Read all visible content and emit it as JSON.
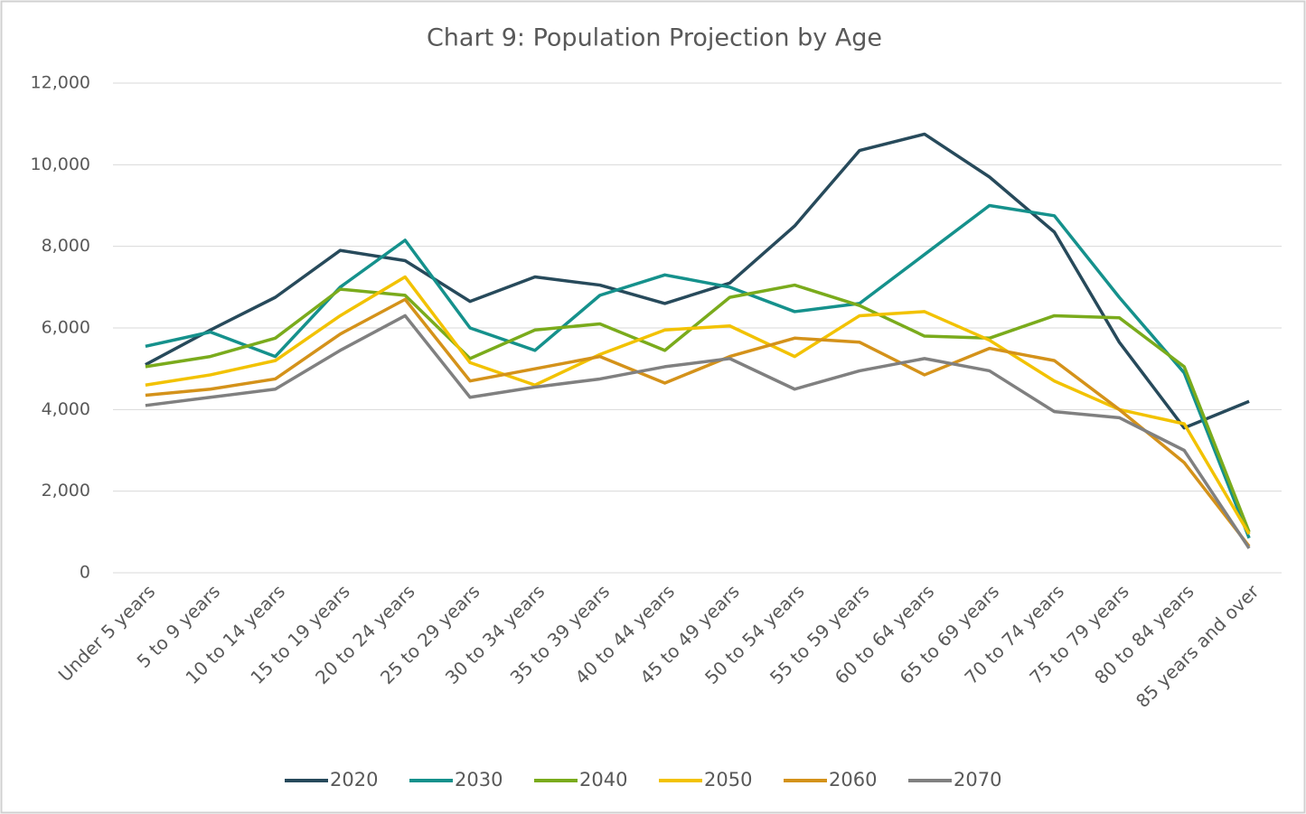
{
  "chart_data": {
    "type": "line",
    "title": "Chart 9: Population Projection by Age",
    "categories": [
      "Under 5 years",
      "5 to 9 years",
      "10 to 14 years",
      "15 to 19 years",
      "20 to 24 years",
      "25 to 29 years",
      "30 to 34 years",
      "35 to 39 years",
      "40 to 44 years",
      "45 to 49 years",
      "50 to 54 years",
      "55 to 59 years",
      "60 to 64 years",
      "65 to 69 years",
      "70 to 74 years",
      "75 to 79 years",
      "80 to 84 years",
      "85 years and over"
    ],
    "series": [
      {
        "name": "2020",
        "color": "#274a5b",
        "values": [
          5100,
          5950,
          6750,
          7900,
          7650,
          6650,
          7250,
          7050,
          6600,
          7100,
          8500,
          10350,
          10750,
          9700,
          8350,
          5650,
          3550,
          4200
        ]
      },
      {
        "name": "2030",
        "color": "#15918c",
        "values": [
          5550,
          5900,
          5300,
          7000,
          8150,
          6000,
          5450,
          6800,
          7300,
          7000,
          6400,
          6600,
          7800,
          9000,
          8750,
          6750,
          4900,
          850
        ]
      },
      {
        "name": "2040",
        "color": "#7aab1c",
        "values": [
          5050,
          5300,
          5750,
          6950,
          6800,
          5250,
          5950,
          6100,
          5450,
          6750,
          7050,
          6550,
          5800,
          5750,
          6300,
          6250,
          5050,
          1000
        ]
      },
      {
        "name": "2050",
        "color": "#f2c200",
        "values": [
          4600,
          4850,
          5200,
          6300,
          7250,
          5150,
          4600,
          5350,
          5950,
          6050,
          5300,
          6300,
          6400,
          5700,
          4700,
          4000,
          3650,
          950
        ]
      },
      {
        "name": "2060",
        "color": "#d4921a",
        "values": [
          4350,
          4500,
          4750,
          5850,
          6700,
          4700,
          5000,
          5300,
          4650,
          5300,
          5750,
          5650,
          4850,
          5500,
          5200,
          4000,
          2700,
          650
        ]
      },
      {
        "name": "2070",
        "color": "#808080",
        "values": [
          4100,
          4300,
          4500,
          5450,
          6300,
          4300,
          4550,
          4750,
          5050,
          5250,
          4500,
          4950,
          5250,
          4950,
          3950,
          3800,
          3000,
          600
        ]
      }
    ],
    "ylim": [
      0,
      12000
    ],
    "yticks": [
      0,
      {
        "value": 2000,
        "label": "2,000"
      },
      {
        "value": 4000,
        "label": "4,000"
      },
      {
        "value": 6000,
        "label": "6,000"
      },
      {
        "value": 8000,
        "label": "8,000"
      },
      {
        "value": 10000,
        "label": "10,000"
      },
      {
        "value": 12000,
        "label": "12,000"
      }
    ],
    "grid": true,
    "legend": "bottom"
  }
}
